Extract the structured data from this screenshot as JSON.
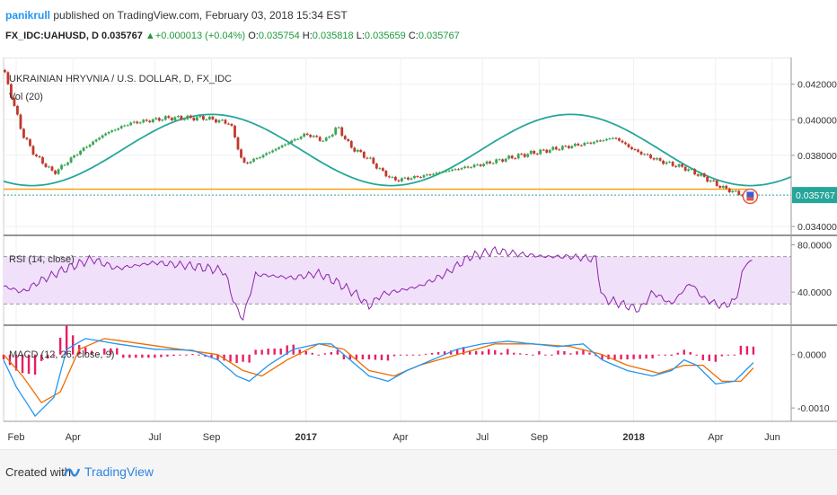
{
  "header": {
    "user": "panikrull",
    "published_text": "published on TradingView.com, February 03, 2018 15:34 EST",
    "symbol": "FX_IDC:UAHUSD, D",
    "last": "0.035767",
    "change": "+0.000013 (+0.04%)",
    "o_label": "O:",
    "o_value": "0.035754",
    "h_label": "H:",
    "h_value": "0.035818",
    "l_label": "L:",
    "l_value": "0.035659",
    "c_label": "C:",
    "c_value": "0.035767"
  },
  "footer": {
    "created_with": "Created with",
    "brand": "TradingView"
  },
  "colors": {
    "up": "#3aa655",
    "down": "#c0392b",
    "sine": "#26a69a",
    "rsi": "#8e24aa",
    "rsi_band": "#f0e0fa",
    "macd": "#2196f3",
    "signal": "#ef6c00",
    "hist": "#e91e63",
    "support": "#ff9800",
    "price_tag": "#26a69a"
  },
  "chart_data": {
    "type": "candlestick",
    "title": "UKRAINIAN HRYVNIA / U.S. DOLLAR, D, FX_IDC",
    "indicator_vol": "Vol (20)",
    "x_ticks": [
      "Feb",
      "Apr",
      "Jul",
      "Sep",
      "2017",
      "Apr",
      "Jul",
      "Sep",
      "2018",
      "Apr",
      "Jun"
    ],
    "price_axis": {
      "ticks": [
        "0.042000",
        "0.040000",
        "0.038000",
        "0.034000"
      ],
      "ylim": [
        0.0335,
        0.0435
      ],
      "current_label": "0.035767",
      "current_value": 0.035767,
      "support_level": 0.0361
    },
    "price_path": [
      [
        0,
        0.0428
      ],
      [
        1.5,
        0.041
      ],
      [
        3,
        0.0392
      ],
      [
        5,
        0.038
      ],
      [
        8,
        0.037
      ],
      [
        12,
        0.0382
      ],
      [
        16,
        0.0392
      ],
      [
        20,
        0.0398
      ],
      [
        26,
        0.0401
      ],
      [
        32,
        0.0401
      ],
      [
        36,
        0.0398
      ],
      [
        38,
        0.0375
      ],
      [
        40,
        0.0378
      ],
      [
        44,
        0.0385
      ],
      [
        48,
        0.0392
      ],
      [
        51,
        0.0388
      ],
      [
        53,
        0.0396
      ],
      [
        55,
        0.0385
      ],
      [
        58,
        0.0378
      ],
      [
        60,
        0.0371
      ],
      [
        62,
        0.0366
      ],
      [
        66,
        0.0368
      ],
      [
        70,
        0.0371
      ],
      [
        76,
        0.0375
      ],
      [
        82,
        0.038
      ],
      [
        88,
        0.0384
      ],
      [
        93,
        0.0387
      ],
      [
        97,
        0.039
      ],
      [
        100,
        0.0383
      ],
      [
        104,
        0.0377
      ],
      [
        108,
        0.0373
      ],
      [
        111,
        0.0368
      ],
      [
        114,
        0.0362
      ],
      [
        117,
        0.0358
      ],
      [
        119,
        0.03575
      ]
    ],
    "sine": {
      "center": 0.0383,
      "amplitude": 0.002,
      "period_weeks": 57,
      "peak_week": 33
    },
    "rsi": {
      "label": "RSI (14, close)",
      "ticks": [
        "80.0000",
        "40.0000"
      ],
      "ylim": [
        12,
        88
      ],
      "upper_band": 70,
      "lower_band": 30,
      "path": [
        [
          0,
          45
        ],
        [
          3,
          40
        ],
        [
          6,
          50
        ],
        [
          10,
          60
        ],
        [
          14,
          68
        ],
        [
          18,
          60
        ],
        [
          24,
          65
        ],
        [
          30,
          62
        ],
        [
          35,
          58
        ],
        [
          37,
          25
        ],
        [
          38,
          18
        ],
        [
          40,
          55
        ],
        [
          46,
          52
        ],
        [
          50,
          56
        ],
        [
          53,
          48
        ],
        [
          56,
          38
        ],
        [
          58,
          28
        ],
        [
          60,
          38
        ],
        [
          66,
          45
        ],
        [
          70,
          55
        ],
        [
          74,
          70
        ],
        [
          78,
          75
        ],
        [
          82,
          72
        ],
        [
          86,
          70
        ],
        [
          90,
          70
        ],
        [
          94,
          68
        ],
        [
          95,
          35
        ],
        [
          98,
          30
        ],
        [
          101,
          25
        ],
        [
          103,
          40
        ],
        [
          106,
          30
        ],
        [
          109,
          48
        ],
        [
          111,
          35
        ],
        [
          114,
          28
        ],
        [
          116,
          32
        ],
        [
          118,
          68
        ],
        [
          119,
          62
        ]
      ]
    },
    "macd": {
      "label": "MACD (12, 26, close, 9)",
      "ticks": [
        "0.0000",
        "-0.0010"
      ],
      "ylim": [
        -0.00125,
        0.00055
      ],
      "macd_path": [
        [
          0,
          -0.0001
        ],
        [
          2,
          -0.0006
        ],
        [
          5,
          -0.00115
        ],
        [
          8,
          -0.0008
        ],
        [
          10,
          0.0001
        ],
        [
          13,
          0.0003
        ],
        [
          18,
          0.0002
        ],
        [
          24,
          0.0001
        ],
        [
          30,
          8e-05
        ],
        [
          34,
          -0.0001
        ],
        [
          37,
          -0.0004
        ],
        [
          39,
          -0.0005
        ],
        [
          42,
          -0.0002
        ],
        [
          46,
          0.0001
        ],
        [
          50,
          0.0002
        ],
        [
          52,
          0.0002
        ],
        [
          55,
          -0.0001
        ],
        [
          58,
          -0.0004
        ],
        [
          61,
          -0.0005
        ],
        [
          64,
          -0.0003
        ],
        [
          68,
          -0.0001
        ],
        [
          72,
          0.0001
        ],
        [
          76,
          0.0002
        ],
        [
          80,
          0.00025
        ],
        [
          84,
          0.0002
        ],
        [
          88,
          0.00015
        ],
        [
          92,
          0.0002
        ],
        [
          95,
          -0.0001
        ],
        [
          99,
          -0.0003
        ],
        [
          103,
          -0.0004
        ],
        [
          106,
          -0.0003
        ],
        [
          108,
          -0.0001
        ],
        [
          110,
          -0.0002
        ],
        [
          113,
          -0.00055
        ],
        [
          116,
          -0.0005
        ],
        [
          119,
          -0.00015
        ]
      ],
      "signal_path": [
        [
          0,
          0.0
        ],
        [
          3,
          -0.0004
        ],
        [
          6,
          -0.0009
        ],
        [
          9,
          -0.0007
        ],
        [
          12,
          0.0001
        ],
        [
          16,
          0.0003
        ],
        [
          22,
          0.0002
        ],
        [
          28,
          0.0001
        ],
        [
          34,
          0.0
        ],
        [
          38,
          -0.0003
        ],
        [
          41,
          -0.0004
        ],
        [
          45,
          -0.0001
        ],
        [
          50,
          0.0002
        ],
        [
          54,
          0.0001
        ],
        [
          58,
          -0.0003
        ],
        [
          62,
          -0.0004
        ],
        [
          66,
          -0.0002
        ],
        [
          72,
          0.0
        ],
        [
          78,
          0.0002
        ],
        [
          84,
          0.0002
        ],
        [
          90,
          0.00015
        ],
        [
          95,
          0.0
        ],
        [
          99,
          -0.0002
        ],
        [
          104,
          -0.00035
        ],
        [
          108,
          -0.0002
        ],
        [
          111,
          -0.0002
        ],
        [
          114,
          -0.0005
        ],
        [
          117,
          -0.0005
        ],
        [
          119,
          -0.00025
        ]
      ],
      "hist_up_weeks": [
        10,
        11,
        12,
        16,
        17,
        18,
        40,
        45,
        46,
        53,
        73,
        77,
        78,
        80,
        85,
        88,
        89,
        117,
        118,
        119
      ]
    }
  }
}
